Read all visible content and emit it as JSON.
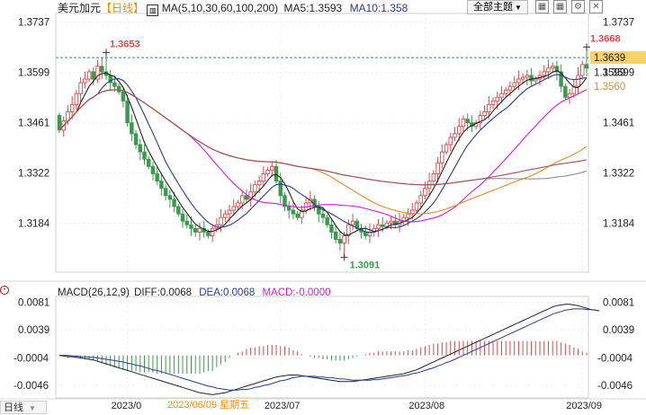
{
  "header": {
    "symbol": "美元加元",
    "period": "日线",
    "ma_label": "MA(5,10,30,60,100,200)",
    "ma5_label": "MA5:1.3593",
    "ma10_label": "MA10:1.358",
    "theme_button": "全部主题"
  },
  "macd_header": {
    "label": "MACD(26,12,9)",
    "diff": "DIFF:0.0068",
    "dea": "DEA:0.0068",
    "macd": "MACD:-0.0000"
  },
  "bottom_bar": {
    "period_label": "日线",
    "hover_date": "2023/06/09",
    "hover_weekday": "星期五"
  },
  "icons": [
    "candlestick-chart-icon",
    "grid-icon",
    "grid-icon",
    "settings-icon",
    "close-icon"
  ],
  "colors": {
    "up": "#d84a4a",
    "down": "#3c9a4e",
    "ma5": "#222222",
    "ma10": "#2a3a8c",
    "ma30": "#d81ad8",
    "ma60": "#e08a2a",
    "ma100": "#8e8e8e",
    "ma200": "#a05050",
    "current_price_tag": "#f5d36b"
  },
  "chart_data": [
    {
      "type": "candlestick",
      "title": "",
      "ylim": [
        1.305,
        1.376
      ],
      "y_ticks": [
        "1.3737",
        "1.3599",
        "1.3461",
        "1.3322",
        "1.3184"
      ],
      "x_tick_labels": [
        "2023/0",
        "2023/07",
        "2023/08",
        "2023/09"
      ],
      "x_tick_index": [
        16,
        52,
        86,
        123
      ],
      "annotations": [
        {
          "label": "1.3653",
          "index": 11,
          "value": 1.3653,
          "kind": "high"
        },
        {
          "label": "1.3668",
          "index": 124,
          "value": 1.3668,
          "kind": "high"
        },
        {
          "label": "1.3091",
          "index": 67,
          "value": 1.3091,
          "kind": "low"
        }
      ],
      "current_price": {
        "label": "1.3639",
        "value": 1.3639
      },
      "right_labels": [
        {
          "label": "1.3599",
          "value": 1.3599
        },
        {
          "label": "1.3560",
          "value": 1.356
        }
      ],
      "ohlc_open": [
        1.348,
        1.344,
        1.3465,
        1.349,
        1.351,
        1.354,
        1.357,
        1.358,
        1.36,
        1.358,
        1.3615,
        1.36,
        1.359,
        1.357,
        1.356,
        1.3545,
        1.352,
        1.346,
        1.343,
        1.34,
        1.338,
        1.336,
        1.334,
        1.332,
        1.33,
        1.328,
        1.326,
        1.325,
        1.323,
        1.321,
        1.319,
        1.318,
        1.317,
        1.316,
        1.317,
        1.316,
        1.315,
        1.317,
        1.318,
        1.32,
        1.321,
        1.322,
        1.323,
        1.324,
        1.326,
        1.325,
        1.327,
        1.329,
        1.33,
        1.332,
        1.333,
        1.334,
        1.33,
        1.326,
        1.323,
        1.322,
        1.321,
        1.32,
        1.322,
        1.324,
        1.325,
        1.323,
        1.321,
        1.32,
        1.318,
        1.316,
        1.314,
        1.313,
        1.315,
        1.318,
        1.319,
        1.317,
        1.316,
        1.315,
        1.316,
        1.317,
        1.318,
        1.3175,
        1.3185,
        1.319,
        1.318,
        1.319,
        1.32,
        1.321,
        1.322,
        1.324,
        1.326,
        1.328,
        1.33,
        1.332,
        1.335,
        1.338,
        1.34,
        1.342,
        1.343,
        1.345,
        1.347,
        1.346,
        1.345,
        1.346,
        1.348,
        1.349,
        1.351,
        1.352,
        1.353,
        1.354,
        1.355,
        1.356,
        1.357,
        1.358,
        1.3585,
        1.359,
        1.3575,
        1.358,
        1.359,
        1.36,
        1.361,
        1.3615,
        1.36,
        1.356,
        1.353,
        1.354,
        1.356,
        1.359,
        1.362
      ],
      "ohlc_close": [
        1.344,
        1.3465,
        1.349,
        1.351,
        1.354,
        1.357,
        1.358,
        1.36,
        1.358,
        1.3615,
        1.36,
        1.359,
        1.357,
        1.356,
        1.3545,
        1.352,
        1.346,
        1.343,
        1.34,
        1.338,
        1.336,
        1.334,
        1.332,
        1.33,
        1.328,
        1.326,
        1.325,
        1.323,
        1.321,
        1.319,
        1.318,
        1.317,
        1.316,
        1.317,
        1.316,
        1.315,
        1.317,
        1.318,
        1.32,
        1.321,
        1.322,
        1.323,
        1.324,
        1.326,
        1.325,
        1.327,
        1.329,
        1.33,
        1.332,
        1.333,
        1.334,
        1.33,
        1.326,
        1.323,
        1.322,
        1.321,
        1.32,
        1.322,
        1.324,
        1.325,
        1.323,
        1.321,
        1.32,
        1.318,
        1.316,
        1.314,
        1.313,
        1.315,
        1.318,
        1.319,
        1.317,
        1.316,
        1.315,
        1.316,
        1.317,
        1.318,
        1.3175,
        1.3185,
        1.319,
        1.318,
        1.319,
        1.32,
        1.321,
        1.322,
        1.324,
        1.326,
        1.328,
        1.33,
        1.332,
        1.335,
        1.338,
        1.34,
        1.342,
        1.343,
        1.345,
        1.347,
        1.346,
        1.345,
        1.346,
        1.348,
        1.349,
        1.351,
        1.352,
        1.353,
        1.354,
        1.355,
        1.356,
        1.357,
        1.358,
        1.3585,
        1.359,
        1.3575,
        1.358,
        1.359,
        1.36,
        1.361,
        1.3615,
        1.36,
        1.356,
        1.353,
        1.354,
        1.356,
        1.359,
        1.362,
        1.361
      ]
    },
    {
      "type": "bar+line",
      "title": "",
      "ylim": [
        -0.0065,
        0.009
      ],
      "y_ticks": [
        "0.0081",
        "0.0039",
        "-0.0004",
        "-0.0046"
      ],
      "x_tick_index": [
        16,
        52,
        86,
        123
      ],
      "series": [
        {
          "name": "DIFF",
          "values": [
            0.0,
            -0.0001,
            -0.0002,
            -0.0002,
            -0.0003,
            -0.0004,
            -0.0005,
            -0.0006,
            -0.0007,
            -0.0009,
            -0.0011,
            -0.0013,
            -0.0015,
            -0.0017,
            -0.0019,
            -0.0021,
            -0.0023,
            -0.0025,
            -0.0027,
            -0.0029,
            -0.0031,
            -0.0033,
            -0.0035,
            -0.0037,
            -0.0039,
            -0.0041,
            -0.0043,
            -0.0045,
            -0.0047,
            -0.0049,
            -0.0051,
            -0.0053,
            -0.0055,
            -0.0057,
            -0.0058,
            -0.0059,
            -0.006,
            -0.0059,
            -0.0058,
            -0.0057,
            -0.0055,
            -0.0053,
            -0.0051,
            -0.0049,
            -0.0047,
            -0.0045,
            -0.0043,
            -0.0041,
            -0.0039,
            -0.0037,
            -0.0035,
            -0.0033,
            -0.0032,
            -0.0031,
            -0.003,
            -0.003,
            -0.003,
            -0.0031,
            -0.0032,
            -0.0033,
            -0.0034,
            -0.0035,
            -0.0036,
            -0.0037,
            -0.0038,
            -0.0039,
            -0.004,
            -0.004,
            -0.004,
            -0.004,
            -0.0039,
            -0.0038,
            -0.0037,
            -0.0036,
            -0.0035,
            -0.0034,
            -0.0033,
            -0.0032,
            -0.0031,
            -0.003,
            -0.0029,
            -0.0028,
            -0.0026,
            -0.0024,
            -0.0022,
            -0.0019,
            -0.0016,
            -0.0013,
            -0.001,
            -0.0007,
            -0.0004,
            -0.0001,
            0.0002,
            0.0005,
            0.0008,
            0.0011,
            0.0014,
            0.0017,
            0.002,
            0.0023,
            0.0026,
            0.0029,
            0.0032,
            0.0035,
            0.0038,
            0.0041,
            0.0044,
            0.0047,
            0.005,
            0.0053,
            0.0056,
            0.0059,
            0.0062,
            0.0065,
            0.0068,
            0.0071,
            0.0074,
            0.0076,
            0.0077,
            0.0078,
            0.0078,
            0.0077,
            0.0076,
            0.0074,
            0.0072,
            0.007,
            0.0069,
            0.0068
          ]
        },
        {
          "name": "DEA",
          "values": [
            0.0,
            0.0,
            0.0,
            -0.0001,
            -0.0001,
            -0.0002,
            -0.0002,
            -0.0003,
            -0.0003,
            -0.0004,
            -0.0005,
            -0.0006,
            -0.0007,
            -0.0008,
            -0.0009,
            -0.001,
            -0.0012,
            -0.0013,
            -0.0015,
            -0.0016,
            -0.0018,
            -0.002,
            -0.0022,
            -0.0023,
            -0.0025,
            -0.0027,
            -0.0029,
            -0.0031,
            -0.0033,
            -0.0035,
            -0.0037,
            -0.0039,
            -0.0041,
            -0.0043,
            -0.0045,
            -0.0047,
            -0.0048,
            -0.005,
            -0.0051,
            -0.0052,
            -0.0053,
            -0.0053,
            -0.0053,
            -0.0052,
            -0.0052,
            -0.0051,
            -0.0049,
            -0.0048,
            -0.0046,
            -0.0045,
            -0.0043,
            -0.0041,
            -0.0039,
            -0.0038,
            -0.0036,
            -0.0034,
            -0.0033,
            -0.0032,
            -0.0032,
            -0.0032,
            -0.0032,
            -0.0033,
            -0.0033,
            -0.0034,
            -0.0034,
            -0.0035,
            -0.0036,
            -0.0036,
            -0.0037,
            -0.0038,
            -0.0038,
            -0.0038,
            -0.0038,
            -0.0038,
            -0.0037,
            -0.0037,
            -0.0036,
            -0.0035,
            -0.0034,
            -0.0033,
            -0.0032,
            -0.0031,
            -0.003,
            -0.0028,
            -0.0027,
            -0.0025,
            -0.0023,
            -0.0021,
            -0.0019,
            -0.0016,
            -0.0014,
            -0.0011,
            -0.0009,
            -0.0006,
            -0.0003,
            0.0,
            0.0003,
            0.0006,
            0.0009,
            0.0012,
            0.0015,
            0.0018,
            0.0021,
            0.0024,
            0.0027,
            0.003,
            0.0033,
            0.0036,
            0.0039,
            0.0042,
            0.0045,
            0.0048,
            0.0051,
            0.0054,
            0.0057,
            0.006,
            0.0063,
            0.0065,
            0.0067,
            0.0069,
            0.007,
            0.0071,
            0.0071,
            0.0071,
            0.007,
            0.007,
            0.0069,
            0.0068
          ]
        }
      ]
    }
  ]
}
